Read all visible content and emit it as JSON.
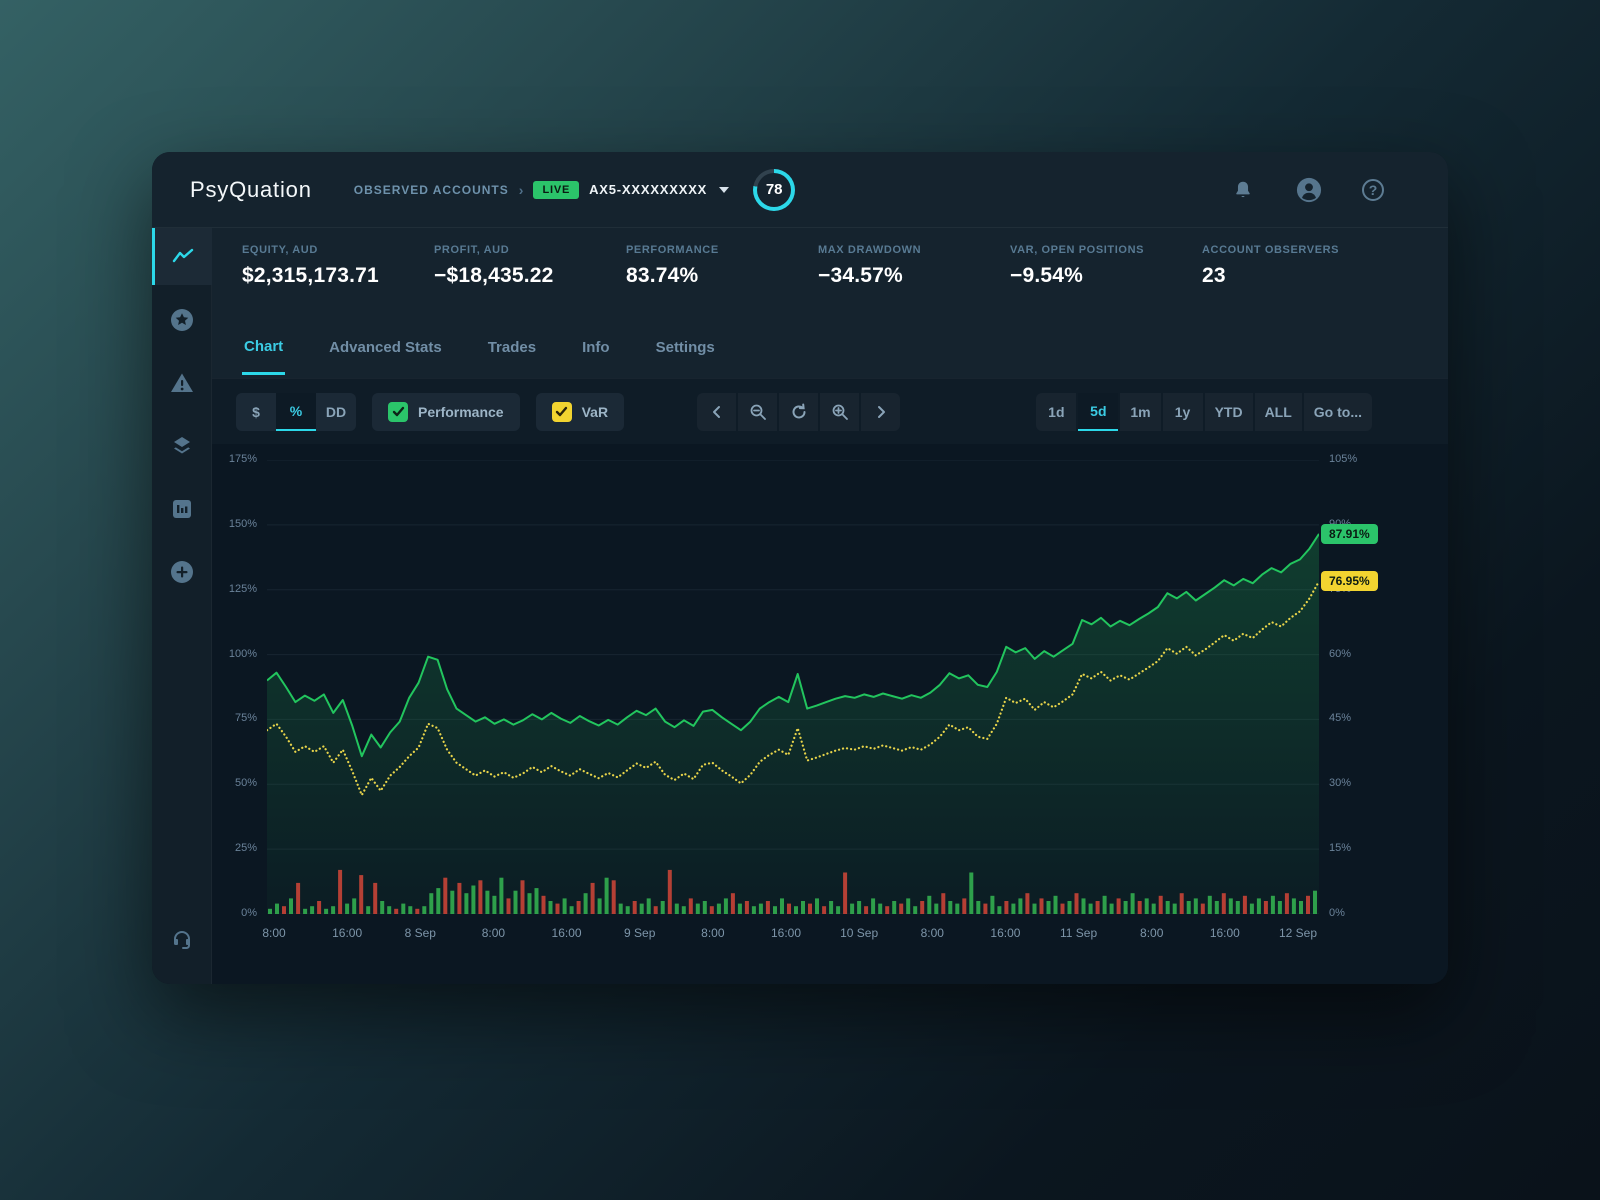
{
  "header": {
    "logo": "PsyQuation",
    "breadcrumb": "OBSERVED ACCOUNTS",
    "live_badge": "LIVE",
    "account": "AX5-XXXXXXXXX",
    "score": "78"
  },
  "stats": [
    {
      "label": "EQUITY, AUD",
      "value": "$2,315,173.71"
    },
    {
      "label": "PROFIT, AUD",
      "value": "−$18,435.22"
    },
    {
      "label": "PERFORMANCE",
      "value": "83.74%"
    },
    {
      "label": "MAX DRAWDOWN",
      "value": "−34.57%"
    },
    {
      "label": "VAR, OPEN POSITIONS",
      "value": "−9.54%"
    },
    {
      "label": "ACCOUNT OBSERVERS",
      "value": "23"
    }
  ],
  "tabs": [
    {
      "label": "Chart"
    },
    {
      "label": "Advanced Stats"
    },
    {
      "label": "Trades"
    },
    {
      "label": "Info"
    },
    {
      "label": "Settings"
    }
  ],
  "toolbar": {
    "unit_options": [
      "$",
      "%",
      "DD"
    ],
    "performance_label": "Performance",
    "var_label": "VaR",
    "ranges": [
      "1d",
      "5d",
      "1m",
      "1y",
      "YTD",
      "ALL",
      "Go to..."
    ]
  },
  "colors": {
    "accent_cyan": "#2cd8e9",
    "performance_green": "#22c55e",
    "var_yellow": "#e8d44a",
    "pill_green": "#2bc46a",
    "pill_yellow": "#f2d430",
    "bar_green": "#2f9e4a",
    "bar_red": "#bb3a33",
    "live_green": "#2bc46a"
  },
  "chart_data": {
    "type": "line",
    "legend": [
      "Performance",
      "VaR"
    ],
    "left_axis": {
      "max": 175,
      "ticks_percent": [
        0,
        25,
        50,
        75,
        100,
        125,
        150,
        175
      ]
    },
    "right_axis": {
      "max": 105,
      "ticks_percent": [
        0,
        15,
        30,
        45,
        60,
        75,
        90,
        105
      ]
    },
    "x_ticks": [
      "8:00",
      "16:00",
      "8 Sep",
      "8:00",
      "16:00",
      "9 Sep",
      "8:00",
      "16:00",
      "10 Sep",
      "8:00",
      "16:00",
      "11 Sep",
      "8:00",
      "16:00",
      "12 Sep"
    ],
    "series": [
      {
        "name": "Performance",
        "axis": "right",
        "style": "solid",
        "color": "#22c55e",
        "end_label": "87.91%",
        "values": [
          54,
          55.8,
          52.5,
          49,
          50.5,
          49.3,
          50.8,
          46.5,
          49.5,
          43.5,
          36.5,
          41.5,
          38.5,
          42,
          44.5,
          50,
          53.5,
          59.5,
          58.8,
          52,
          47.5,
          46,
          44.5,
          45.5,
          44,
          45,
          43.8,
          44.8,
          46.2,
          45,
          46.5,
          45.2,
          44.2,
          45.8,
          44.6,
          43.6,
          44.9,
          43.8,
          45.5,
          47,
          46,
          47.5,
          44.5,
          43.2,
          44.8,
          43.5,
          46.8,
          47.2,
          45.5,
          44,
          42.5,
          44.5,
          47.5,
          49,
          50.2,
          49,
          55.5,
          47.5,
          48.2,
          49,
          49.8,
          50.4,
          50,
          50.8,
          50.2,
          51,
          50.4,
          49.8,
          50.6,
          50,
          51.2,
          53,
          55.7,
          54.5,
          55.2,
          53,
          52.5,
          56,
          61.8,
          60.5,
          61.5,
          59,
          60.8,
          59.5,
          61,
          62.5,
          68,
          67,
          68.5,
          66.5,
          67.8,
          66.8,
          68.2,
          69.5,
          71,
          74.2,
          73,
          74.5,
          72.5,
          74,
          75.5,
          77.2,
          76,
          77.5,
          76.5,
          78.5,
          80,
          79,
          81,
          82,
          84.5,
          87.91
        ]
      },
      {
        "name": "VaR",
        "axis": "right",
        "style": "dotted",
        "color": "#e8d44a",
        "end_label": "76.95%",
        "values": [
          42.5,
          44,
          41,
          37.5,
          38.8,
          37.5,
          38.8,
          35,
          38,
          33,
          27.5,
          31.5,
          28.5,
          32,
          34,
          36.5,
          38.5,
          44,
          43,
          38,
          35,
          33.5,
          32,
          33.2,
          31.8,
          32.8,
          31.5,
          32.5,
          34,
          32.8,
          34.2,
          33,
          32,
          33.5,
          32.4,
          31.4,
          32.6,
          31.6,
          33.2,
          34.8,
          33.8,
          35.2,
          32.2,
          31,
          32.5,
          31.2,
          34.5,
          35,
          33.2,
          31.8,
          30.2,
          32.2,
          35.2,
          36.8,
          38,
          36.8,
          43,
          35.5,
          36.2,
          37,
          37.8,
          38.4,
          38,
          38.8,
          38.2,
          39,
          38.4,
          37.8,
          38.6,
          38,
          39.2,
          41,
          43.8,
          42.5,
          43.2,
          41,
          40.5,
          44,
          50,
          48.8,
          49.8,
          47.2,
          49,
          47.8,
          49.2,
          50.8,
          55.5,
          54.5,
          56,
          54,
          55.2,
          54.2,
          55.6,
          57,
          58.5,
          61.5,
          60.2,
          61.8,
          59.8,
          61.2,
          62.8,
          64.5,
          63.2,
          64.8,
          63.8,
          65.8,
          67.5,
          66.5,
          68.5,
          70,
          73,
          76.95
        ]
      }
    ],
    "bars": {
      "axis": "left",
      "green_color": "#2f9e4a",
      "red_color": "#bb3a33",
      "colors": "ggrgrggrggrggrgrggrggrgggrgrggrgggrgrggrgrggrgrggrggrggrgrggrggrggrgrggrggrggrgrggrggrggrgrggrggrggrggrggrggrgrggrgrggrggrggrggrggrggrggrggrggrggrggrg",
      "values": [
        2,
        4,
        3,
        6,
        12,
        2,
        3,
        5,
        2,
        3,
        17,
        4,
        6,
        15,
        3,
        12,
        5,
        3,
        2,
        4,
        3,
        2,
        3,
        8,
        10,
        14,
        9,
        12,
        8,
        11,
        13,
        9,
        7,
        14,
        6,
        9,
        13,
        8,
        10,
        7,
        5,
        4,
        6,
        3,
        5,
        8,
        12,
        6,
        14,
        13,
        4,
        3,
        5,
        4,
        6,
        3,
        5,
        17,
        4,
        3,
        6,
        4,
        5,
        3,
        4,
        6,
        8,
        4,
        5,
        3,
        4,
        5,
        3,
        6,
        4,
        3,
        5,
        4,
        6,
        3,
        5,
        3,
        16,
        4,
        5,
        3,
        6,
        4,
        3,
        5,
        4,
        6,
        3,
        5,
        7,
        4,
        8,
        5,
        4,
        6,
        16,
        5,
        4,
        7,
        3,
        5,
        4,
        6,
        8,
        4,
        6,
        5,
        7,
        4,
        5,
        8,
        6,
        4,
        5,
        7,
        4,
        6,
        5,
        8,
        5,
        6,
        4,
        7,
        5,
        4,
        8,
        5,
        6,
        4,
        7,
        5,
        8,
        6,
        5,
        7,
        4,
        6,
        5,
        7,
        5,
        8,
        6,
        5,
        7,
        9
      ]
    }
  }
}
